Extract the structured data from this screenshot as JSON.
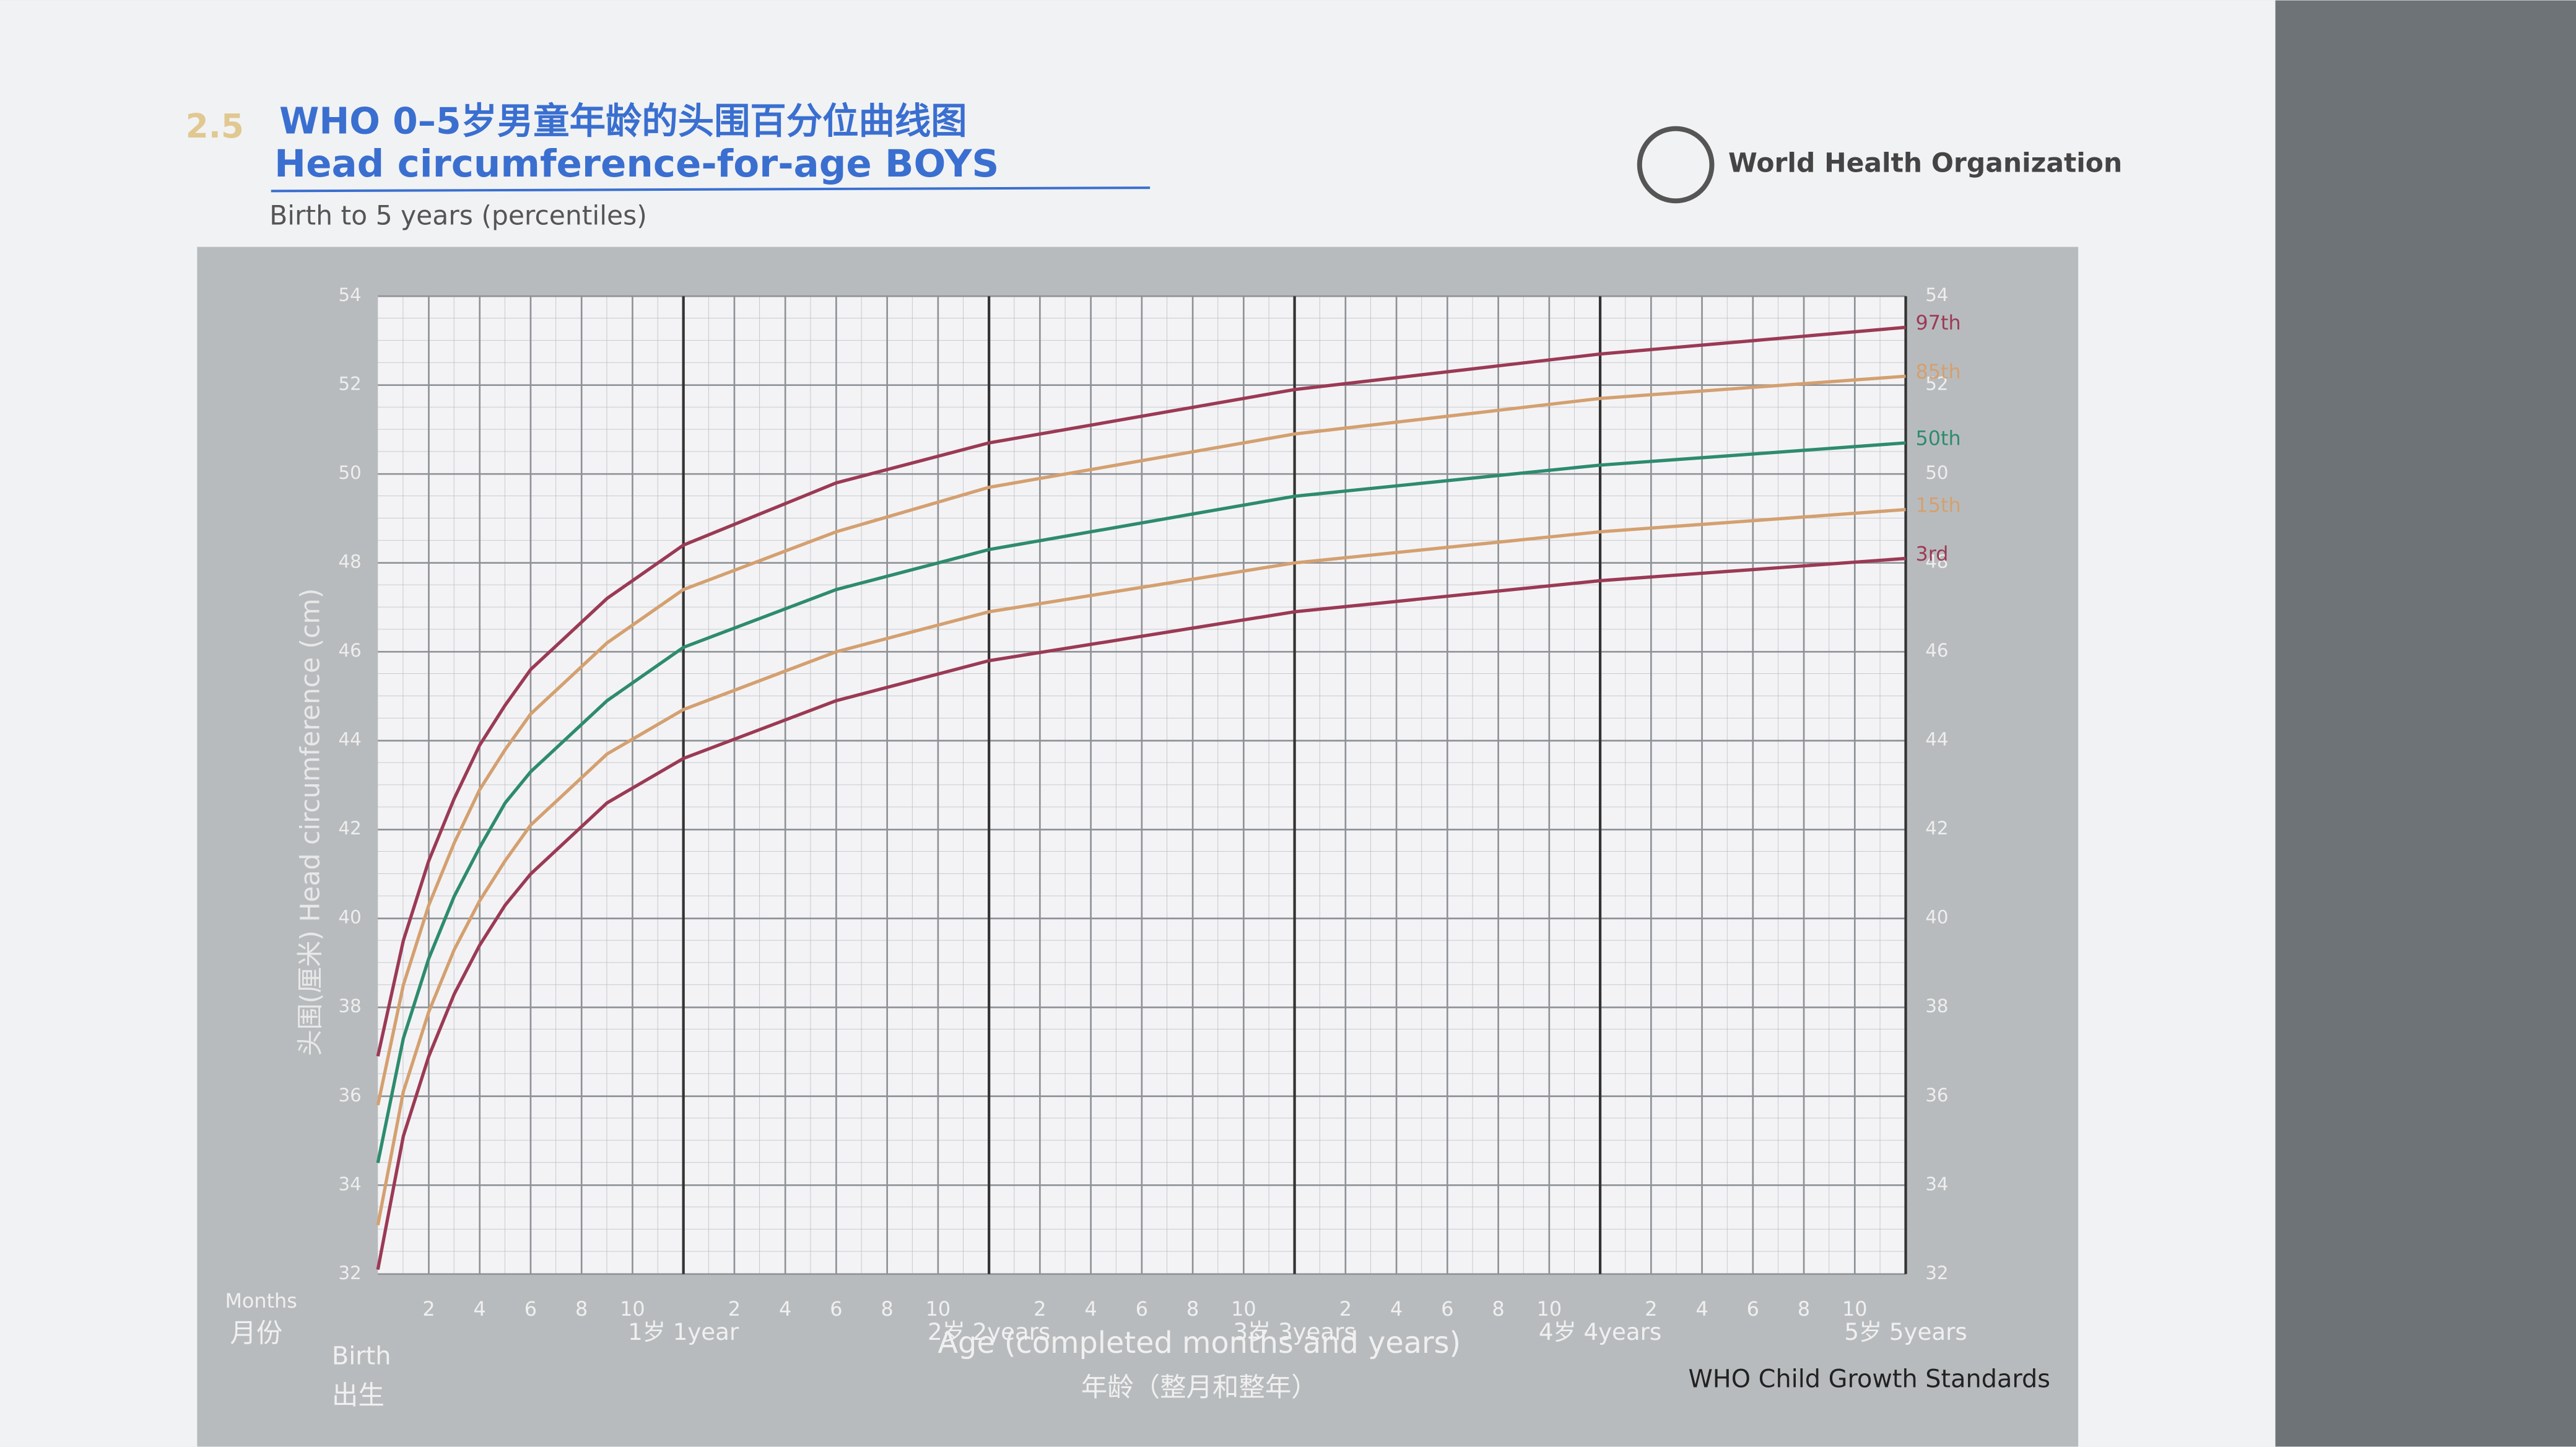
{
  "section": "2.5",
  "title": "WHO 0–5岁男童年龄的头围百分位曲线图",
  "subtitle": "Head circumference-for-age BOYS",
  "caption": "Birth to 5 years (percentiles)",
  "organization": "World Health Organization",
  "footer": "WHO Child Growth Standards",
  "chart_data": {
    "type": "line",
    "ylabel": "头围(厘米) Head circumference (cm)",
    "xlabel": "Age (completed months and years)",
    "xlabel_cn": "年龄（整月和整年）",
    "months_label": "Months",
    "months_label_cn": "月份",
    "birth_label": "Birth",
    "birth_label_cn": "出生",
    "x": [
      0,
      1,
      2,
      3,
      4,
      5,
      6,
      9,
      12,
      18,
      24,
      36,
      48,
      60
    ],
    "xlim": [
      0,
      60
    ],
    "xticks": [
      {
        "value": 2,
        "label": "2"
      },
      {
        "value": 4,
        "label": "4"
      },
      {
        "value": 6,
        "label": "6"
      },
      {
        "value": 8,
        "label": "8"
      },
      {
        "value": 10,
        "label": "10"
      },
      {
        "value": 12,
        "label": "1岁 1year"
      },
      {
        "value": 14,
        "label": "2"
      },
      {
        "value": 16,
        "label": "4"
      },
      {
        "value": 18,
        "label": "6"
      },
      {
        "value": 20,
        "label": "8"
      },
      {
        "value": 22,
        "label": "10"
      },
      {
        "value": 24,
        "label": "2岁 2years"
      },
      {
        "value": 26,
        "label": "2"
      },
      {
        "value": 28,
        "label": "4"
      },
      {
        "value": 30,
        "label": "6"
      },
      {
        "value": 32,
        "label": "8"
      },
      {
        "value": 34,
        "label": "10"
      },
      {
        "value": 36,
        "label": "3岁 3years"
      },
      {
        "value": 38,
        "label": "2"
      },
      {
        "value": 40,
        "label": "4"
      },
      {
        "value": 42,
        "label": "6"
      },
      {
        "value": 44,
        "label": "8"
      },
      {
        "value": 46,
        "label": "10"
      },
      {
        "value": 48,
        "label": "4岁 4years"
      },
      {
        "value": 50,
        "label": "2"
      },
      {
        "value": 52,
        "label": "4"
      },
      {
        "value": 54,
        "label": "6"
      },
      {
        "value": 56,
        "label": "8"
      },
      {
        "value": 58,
        "label": "10"
      },
      {
        "value": 60,
        "label": "5岁 5years"
      }
    ],
    "ylim": [
      32,
      54
    ],
    "yticks": [
      32,
      34,
      36,
      38,
      40,
      42,
      44,
      46,
      48,
      50,
      52,
      54
    ],
    "grid": true,
    "series": [
      {
        "name": "97th",
        "color": "#9b3a55",
        "values": [
          36.9,
          39.5,
          41.3,
          42.7,
          43.9,
          44.8,
          45.6,
          47.2,
          48.4,
          49.8,
          50.7,
          51.9,
          52.7,
          53.3
        ]
      },
      {
        "name": "85th",
        "color": "#d4a070",
        "values": [
          35.8,
          38.5,
          40.3,
          41.7,
          42.9,
          43.8,
          44.6,
          46.2,
          47.4,
          48.7,
          49.7,
          50.9,
          51.7,
          52.2
        ]
      },
      {
        "name": "50th",
        "color": "#2e8b6e",
        "values": [
          34.5,
          37.3,
          39.1,
          40.5,
          41.6,
          42.6,
          43.3,
          44.9,
          46.1,
          47.4,
          48.3,
          49.5,
          50.2,
          50.7
        ]
      },
      {
        "name": "15th",
        "color": "#d4a070",
        "values": [
          33.1,
          36.1,
          37.9,
          39.3,
          40.4,
          41.3,
          42.1,
          43.7,
          44.7,
          46.0,
          46.9,
          48.0,
          48.7,
          49.2
        ]
      },
      {
        "name": "3rd",
        "color": "#9b3a55",
        "values": [
          32.1,
          35.1,
          36.9,
          38.3,
          39.4,
          40.3,
          41.0,
          42.6,
          43.6,
          44.9,
          45.8,
          46.9,
          47.6,
          48.1
        ]
      }
    ]
  }
}
